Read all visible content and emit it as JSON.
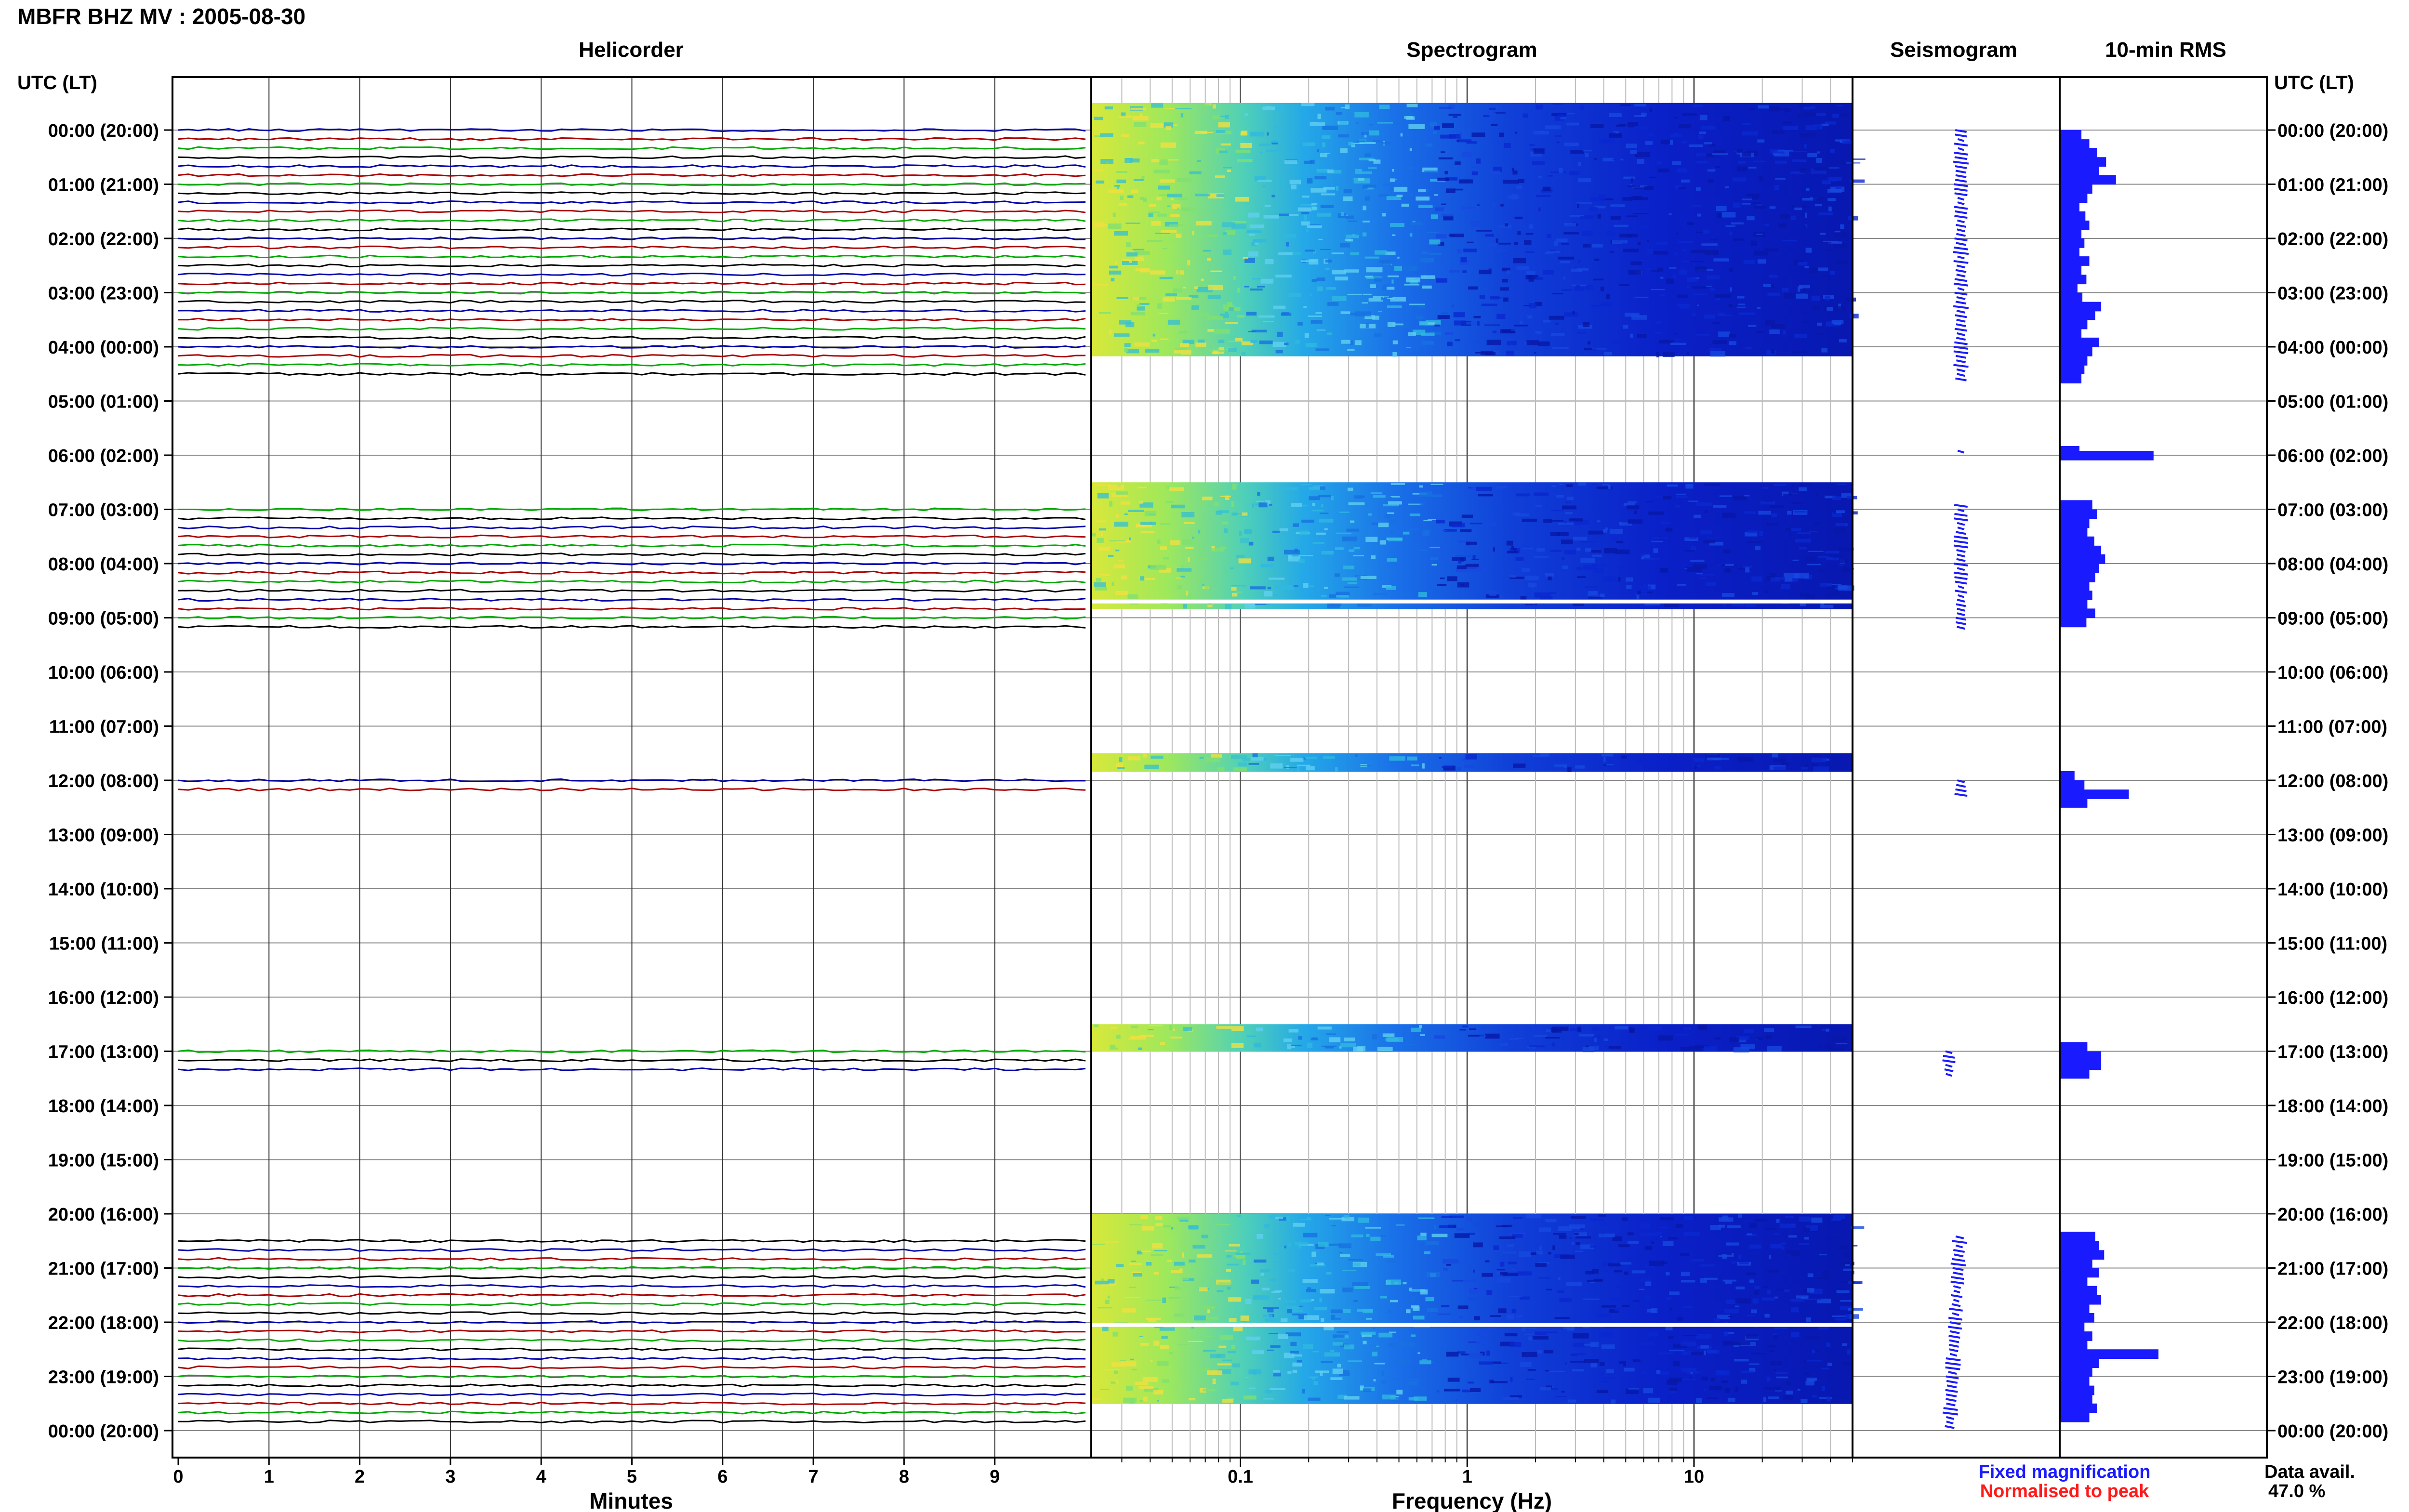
{
  "header": {
    "title": "MBFR BHZ MV : 2005-08-30",
    "utc_label_left": "UTC (LT)",
    "utc_label_right": "UTC (LT)"
  },
  "panels": {
    "helicorder": "Helicorder",
    "spectrogram": "Spectrogram",
    "seismogram": "Seismogram",
    "rms": "10-min RMS"
  },
  "axes": {
    "minutes_label": "Minutes",
    "frequency_label": "Frequency (Hz)",
    "minute_ticks": [
      "0",
      "1",
      "2",
      "3",
      "4",
      "5",
      "6",
      "7",
      "8",
      "9"
    ],
    "frequency_ticks": [
      "0.1",
      "1",
      "10"
    ]
  },
  "legend": {
    "fixed": "Fixed magnification",
    "normalised": "Normalised to peak",
    "fixed_color": "#1a1aff",
    "normalised_color": "#ff1a1a"
  },
  "data_avail": {
    "label": "Data avail.",
    "value": "47.0 %"
  },
  "hour_labels": [
    "00:00 (20:00)",
    "01:00 (21:00)",
    "02:00 (22:00)",
    "03:00 (23:00)",
    "04:00 (00:00)",
    "05:00 (01:00)",
    "06:00 (02:00)",
    "07:00 (03:00)",
    "08:00 (04:00)",
    "09:00 (05:00)",
    "10:00 (06:00)",
    "11:00 (07:00)",
    "12:00 (08:00)",
    "13:00 (09:00)",
    "14:00 (10:00)",
    "15:00 (11:00)",
    "16:00 (12:00)",
    "17:00 (13:00)",
    "18:00 (14:00)",
    "19:00 (15:00)",
    "20:00 (16:00)",
    "21:00 (17:00)",
    "22:00 (18:00)",
    "23:00 (19:00)",
    "00:00 (20:00)"
  ],
  "chart_data": {
    "type": "heatmap",
    "trace_colors": [
      "#0000aa",
      "#aa0000",
      "#00aa00",
      "#000000"
    ],
    "data_segments_hours": [
      [
        0.0,
        4.6
      ],
      [
        5.9,
        6.0
      ],
      [
        6.9,
        9.2
      ],
      [
        12.0,
        12.3
      ],
      [
        17.0,
        17.5
      ],
      [
        20.4,
        24.0
      ]
    ],
    "spectrogram_gaps_hours": [
      8.7,
      22.05
    ],
    "freq_range_hz": [
      0.022,
      50
    ],
    "rms_10min": [
      {
        "hour": 0.0,
        "v": 0.22
      },
      {
        "hour": 0.17,
        "v": 0.3
      },
      {
        "hour": 0.33,
        "v": 0.38
      },
      {
        "hour": 0.5,
        "v": 0.47
      },
      {
        "hour": 0.67,
        "v": 0.4
      },
      {
        "hour": 0.83,
        "v": 0.57
      },
      {
        "hour": 1.0,
        "v": 0.33
      },
      {
        "hour": 1.17,
        "v": 0.28
      },
      {
        "hour": 1.33,
        "v": 0.2
      },
      {
        "hour": 1.5,
        "v": 0.26
      },
      {
        "hour": 1.67,
        "v": 0.3
      },
      {
        "hour": 1.83,
        "v": 0.22
      },
      {
        "hour": 2.0,
        "v": 0.25
      },
      {
        "hour": 2.17,
        "v": 0.2
      },
      {
        "hour": 2.33,
        "v": 0.3
      },
      {
        "hour": 2.5,
        "v": 0.22
      },
      {
        "hour": 2.67,
        "v": 0.27
      },
      {
        "hour": 2.83,
        "v": 0.18
      },
      {
        "hour": 3.0,
        "v": 0.23
      },
      {
        "hour": 3.17,
        "v": 0.42
      },
      {
        "hour": 3.33,
        "v": 0.36
      },
      {
        "hour": 3.5,
        "v": 0.28
      },
      {
        "hour": 3.67,
        "v": 0.22
      },
      {
        "hour": 3.83,
        "v": 0.4
      },
      {
        "hour": 4.0,
        "v": 0.33
      },
      {
        "hour": 4.17,
        "v": 0.28
      },
      {
        "hour": 4.33,
        "v": 0.25
      },
      {
        "hour": 4.5,
        "v": 0.22
      },
      {
        "hour": 5.83,
        "v": 0.2
      },
      {
        "hour": 5.92,
        "v": 0.95
      },
      {
        "hour": 6.83,
        "v": 0.33
      },
      {
        "hour": 7.0,
        "v": 0.38
      },
      {
        "hour": 7.17,
        "v": 0.3
      },
      {
        "hour": 7.33,
        "v": 0.28
      },
      {
        "hour": 7.5,
        "v": 0.35
      },
      {
        "hour": 7.67,
        "v": 0.42
      },
      {
        "hour": 7.83,
        "v": 0.46
      },
      {
        "hour": 8.0,
        "v": 0.4
      },
      {
        "hour": 8.17,
        "v": 0.36
      },
      {
        "hour": 8.33,
        "v": 0.3
      },
      {
        "hour": 8.5,
        "v": 0.33
      },
      {
        "hour": 8.67,
        "v": 0.28
      },
      {
        "hour": 8.83,
        "v": 0.36
      },
      {
        "hour": 9.0,
        "v": 0.27
      },
      {
        "hour": 11.83,
        "v": 0.15
      },
      {
        "hour": 12.0,
        "v": 0.25
      },
      {
        "hour": 12.17,
        "v": 0.7
      },
      {
        "hour": 12.33,
        "v": 0.28
      },
      {
        "hour": 16.83,
        "v": 0.28
      },
      {
        "hour": 17.0,
        "v": 0.42
      },
      {
        "hour": 17.17,
        "v": 0.42
      },
      {
        "hour": 17.33,
        "v": 0.3
      },
      {
        "hour": 20.33,
        "v": 0.36
      },
      {
        "hour": 20.5,
        "v": 0.4
      },
      {
        "hour": 20.67,
        "v": 0.45
      },
      {
        "hour": 20.83,
        "v": 0.33
      },
      {
        "hour": 21.0,
        "v": 0.4
      },
      {
        "hour": 21.17,
        "v": 0.28
      },
      {
        "hour": 21.33,
        "v": 0.38
      },
      {
        "hour": 21.5,
        "v": 0.42
      },
      {
        "hour": 21.67,
        "v": 0.3
      },
      {
        "hour": 21.83,
        "v": 0.35
      },
      {
        "hour": 22.0,
        "v": 0.25
      },
      {
        "hour": 22.17,
        "v": 0.33
      },
      {
        "hour": 22.33,
        "v": 0.28
      },
      {
        "hour": 22.5,
        "v": 1.0
      },
      {
        "hour": 22.67,
        "v": 0.4
      },
      {
        "hour": 22.83,
        "v": 0.33
      },
      {
        "hour": 23.0,
        "v": 0.3
      },
      {
        "hour": 23.17,
        "v": 0.35
      },
      {
        "hour": 23.33,
        "v": 0.33
      },
      {
        "hour": 23.5,
        "v": 0.38
      },
      {
        "hour": 23.67,
        "v": 0.3
      }
    ]
  }
}
